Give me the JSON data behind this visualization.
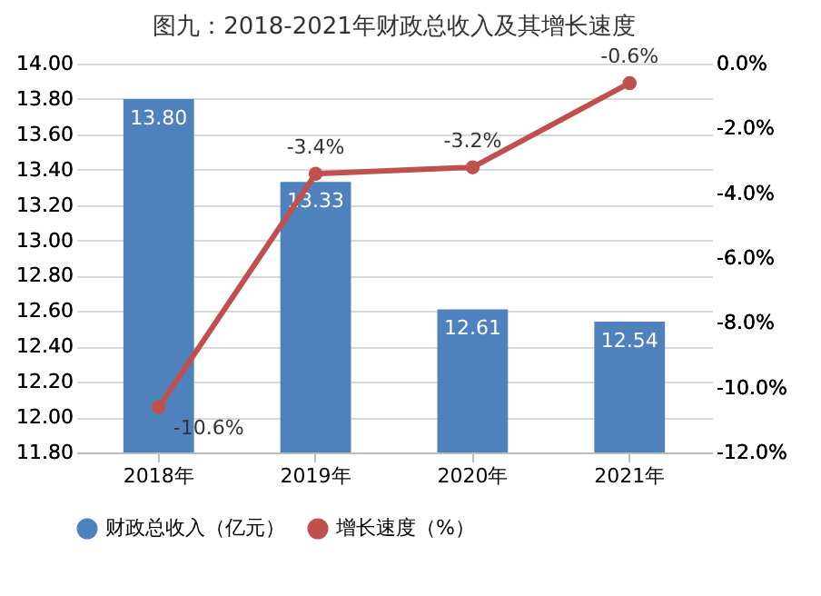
{
  "chart_data": {
    "type": "bar",
    "title": "图九：2018-2021年财政总收入及其增长速度",
    "categories": [
      "2018年",
      "2019年",
      "2020年",
      "2021年"
    ],
    "series": [
      {
        "name": "财政总收入（亿元）",
        "color": "#4f81bd",
        "values": [
          13.8,
          13.33,
          12.61,
          12.54
        ],
        "value_labels": [
          "13.80",
          "13.33",
          "12.61",
          "12.54"
        ]
      },
      {
        "name": "增长速度（%）",
        "type": "line",
        "axis": "y2",
        "color": "#c0504d",
        "values": [
          -10.6,
          -3.4,
          -3.2,
          -0.6
        ],
        "value_labels": [
          "-10.6%",
          "-3.4%",
          "-3.2%",
          "-0.6%"
        ]
      }
    ],
    "ylim": [
      11.8,
      14.0
    ],
    "yticks": [
      {
        "value": 11.8,
        "label": "11.80"
      },
      {
        "value": 12.0,
        "label": "12.00"
      },
      {
        "value": 12.2,
        "label": "12.20"
      },
      {
        "value": 12.4,
        "label": "12.40"
      },
      {
        "value": 12.6,
        "label": "12.60"
      },
      {
        "value": 12.8,
        "label": "12.80"
      },
      {
        "value": 13.0,
        "label": "13.00"
      },
      {
        "value": 13.2,
        "label": "13.20"
      },
      {
        "value": 13.4,
        "label": "13.40"
      },
      {
        "value": 13.6,
        "label": "13.60"
      },
      {
        "value": 13.8,
        "label": "13.80"
      },
      {
        "value": 14.0,
        "label": "14.00"
      }
    ],
    "y2lim": [
      -12,
      0
    ],
    "y2ticks": [
      {
        "value": -12,
        "label": "-12.0%"
      },
      {
        "value": -10,
        "label": "-10.0%"
      },
      {
        "value": -8,
        "label": "-8.0%"
      },
      {
        "value": -6,
        "label": "-6.0%"
      },
      {
        "value": -4,
        "label": "-4.0%"
      },
      {
        "value": -2,
        "label": "-2.0%"
      },
      {
        "value": 0,
        "label": "0.0%"
      }
    ],
    "grid": "y",
    "legend": "bottom",
    "marker": "circle",
    "line_style": "solid"
  }
}
